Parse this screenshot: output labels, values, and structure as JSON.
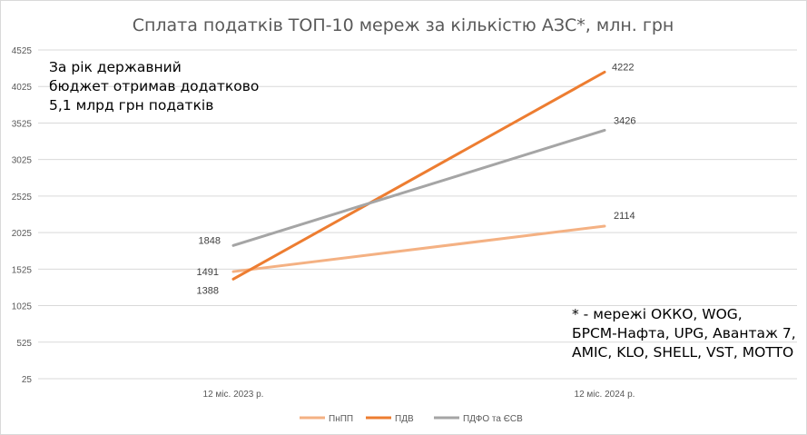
{
  "chart_data": {
    "type": "line",
    "title": "Сплата податків ТОП-10 мереж за кількістю АЗС*, млн. грн",
    "categories": [
      "12 міс. 2023 р.",
      "12 міс. 2024 р."
    ],
    "y_ticks": [
      25,
      525,
      1025,
      1525,
      2025,
      2525,
      3025,
      3525,
      4025,
      4525
    ],
    "ylim": [
      25,
      4525
    ],
    "grid": true,
    "legend_position": "bottom",
    "series": [
      {
        "name": "ПнПП",
        "values": [
          1491,
          2114
        ],
        "color": "#F4B183"
      },
      {
        "name": "ПДВ",
        "values": [
          1388,
          4222
        ],
        "color": "#ED7D31"
      },
      {
        "name": "ПДФО та ЄСВ",
        "values": [
          1848,
          3426
        ],
        "color": "#A5A5A5"
      }
    ]
  },
  "annotations": {
    "budget_note": [
      "За рік державний",
      "бюджет отримав додатково",
      "5,1 млрд грн податків"
    ],
    "networks_note": [
      "* - мережі ОККО, WOG,",
      "БРСМ-Нафта, UPG, Авантаж 7,",
      "AMIC, KLO, SHELL, VST, MOTTO"
    ]
  }
}
